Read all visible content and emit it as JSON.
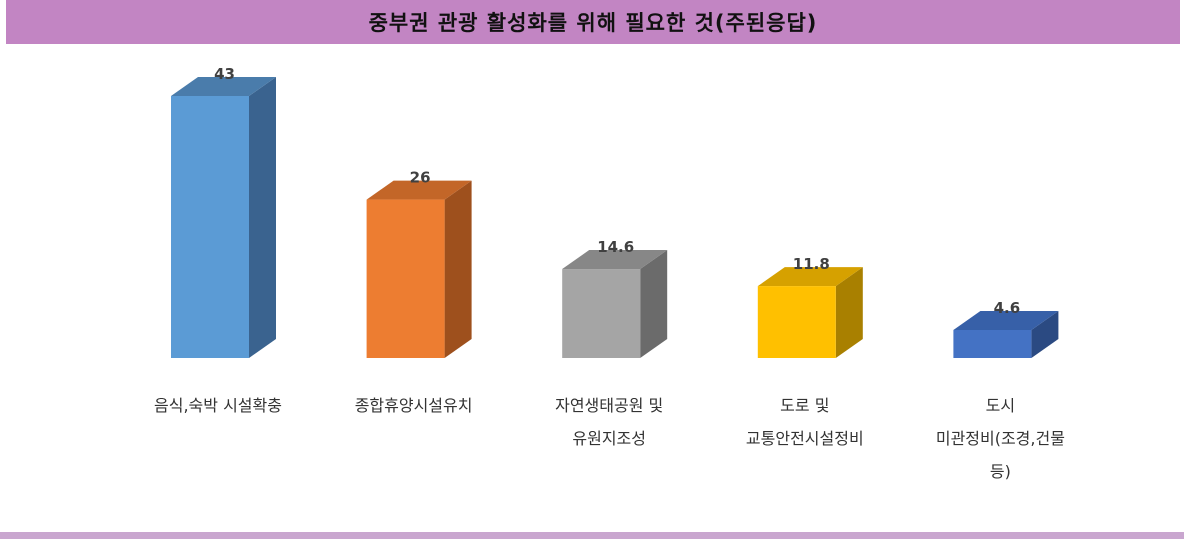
{
  "title": "중부권 관광 활성화를 위해 필요한 것(주된응답)",
  "chart_data": {
    "type": "bar",
    "style": "3d-column",
    "title": "중부권 관광 활성화를 위해 필요한 것(주된응답)",
    "categories": [
      "음식,숙박 시설확충",
      "종합휴양시설유치",
      "자연생태공원 및\n유원지조성",
      "도로 및\n교통안전시설정비",
      "도시\n미관정비(조경,건물\n등)"
    ],
    "values": [
      43,
      26,
      14.6,
      11.8,
      4.6
    ],
    "value_labels": [
      "43",
      "26",
      "14.6",
      "11.8",
      "4.6"
    ],
    "colors": [
      {
        "front": "#5b9bd5",
        "side": "#3a638f",
        "top": "#4a7cab"
      },
      {
        "front": "#ed7d31",
        "side": "#9e501d",
        "top": "#c36628"
      },
      {
        "front": "#a5a5a5",
        "side": "#6b6b6b",
        "top": "#878787"
      },
      {
        "front": "#ffc000",
        "side": "#a98000",
        "top": "#d6a100"
      },
      {
        "front": "#4472c4",
        "side": "#2b4a82",
        "top": "#3760a8"
      }
    ],
    "ylim": [
      0,
      43
    ],
    "grid": false,
    "legend": "none"
  }
}
